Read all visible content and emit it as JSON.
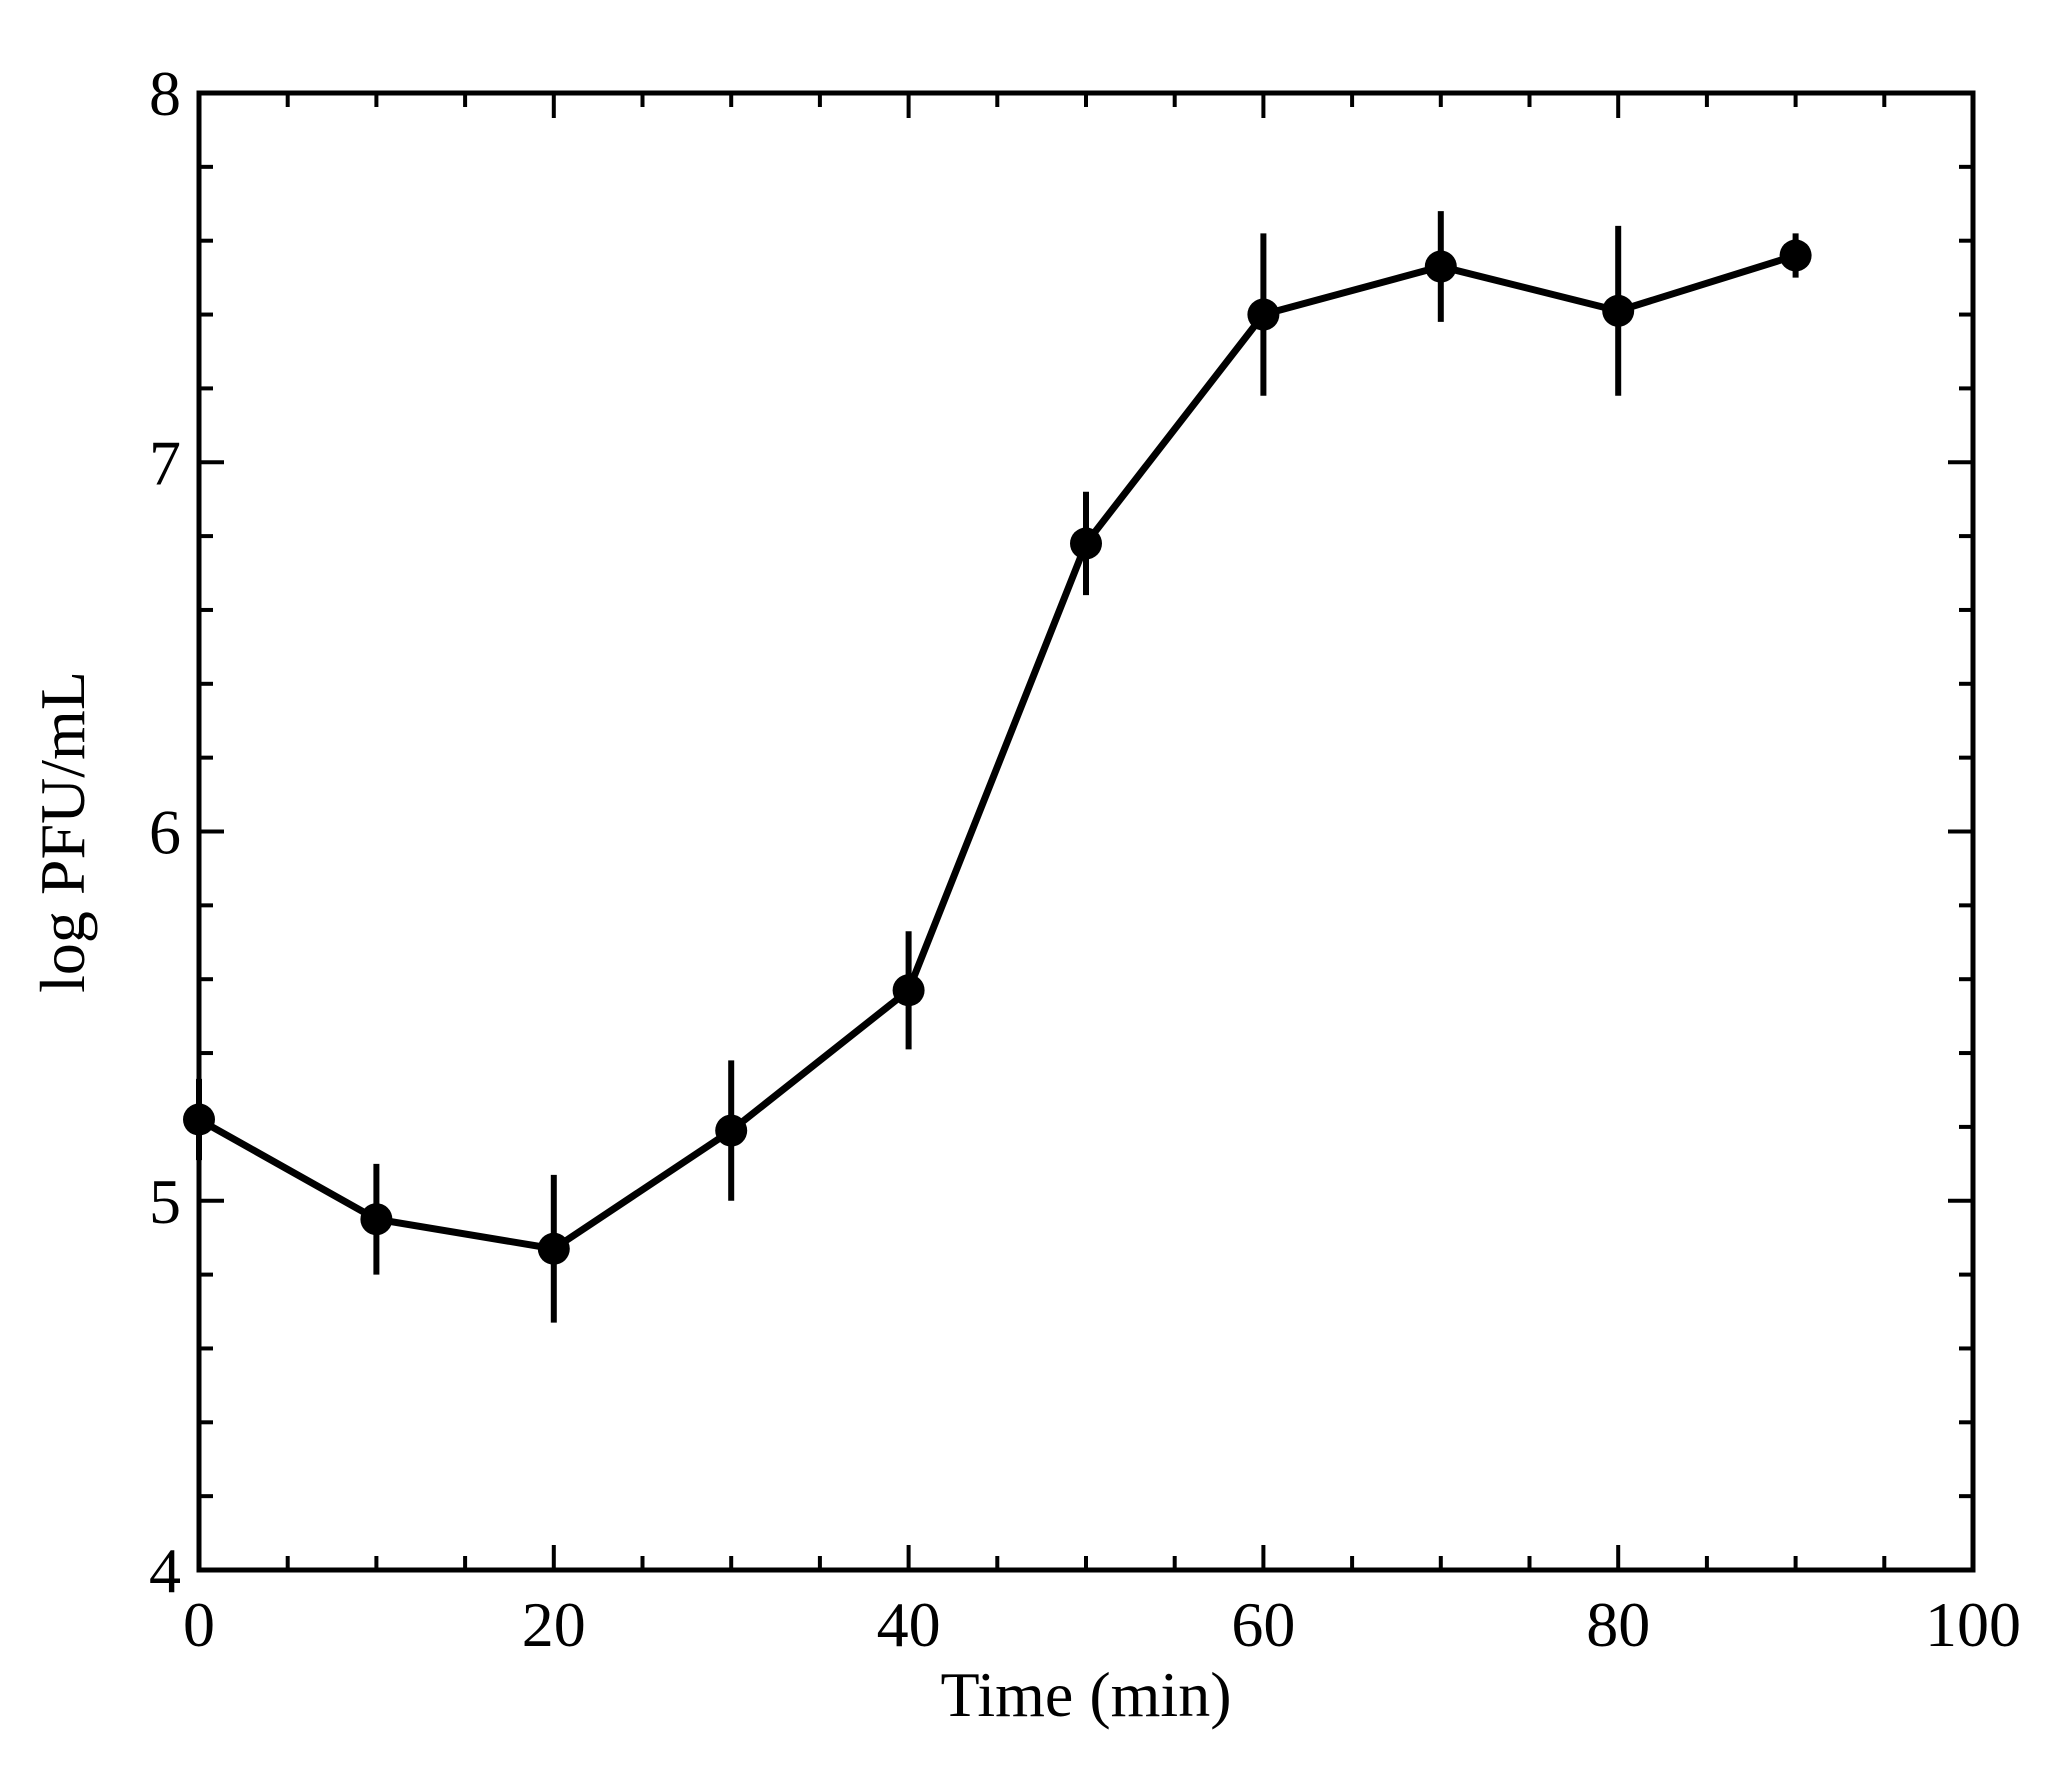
{
  "figure": {
    "background_color": "#ffffff",
    "foreground_color": "#000000"
  },
  "chart_data": {
    "type": "line",
    "title": "",
    "xlabel": "Time (min)",
    "ylabel": "log PFU/mL",
    "x": [
      0,
      10,
      20,
      30,
      40,
      50,
      60,
      70,
      80,
      90
    ],
    "y": [
      5.22,
      4.95,
      4.87,
      5.19,
      5.57,
      6.78,
      7.4,
      7.53,
      7.41,
      7.56
    ],
    "yerr": [
      0.11,
      0.15,
      0.2,
      0.19,
      0.16,
      0.14,
      0.22,
      0.15,
      0.23,
      0.06
    ],
    "xlim": [
      0,
      100
    ],
    "ylim": [
      4,
      8
    ],
    "x_major_ticks": [
      0,
      20,
      40,
      60,
      80,
      100
    ],
    "x_tick_labels": [
      "0",
      "20",
      "40",
      "60",
      "80",
      "100"
    ],
    "x_minor_step": 5,
    "y_major_ticks": [
      4,
      5,
      6,
      7,
      8
    ],
    "y_tick_labels": [
      "4",
      "5",
      "6",
      "7",
      "8"
    ],
    "y_minor_step": 0.2,
    "grid": false,
    "legend": null,
    "marker": "filled-circle",
    "error_bar_caps": false,
    "series_color": "#000000"
  }
}
